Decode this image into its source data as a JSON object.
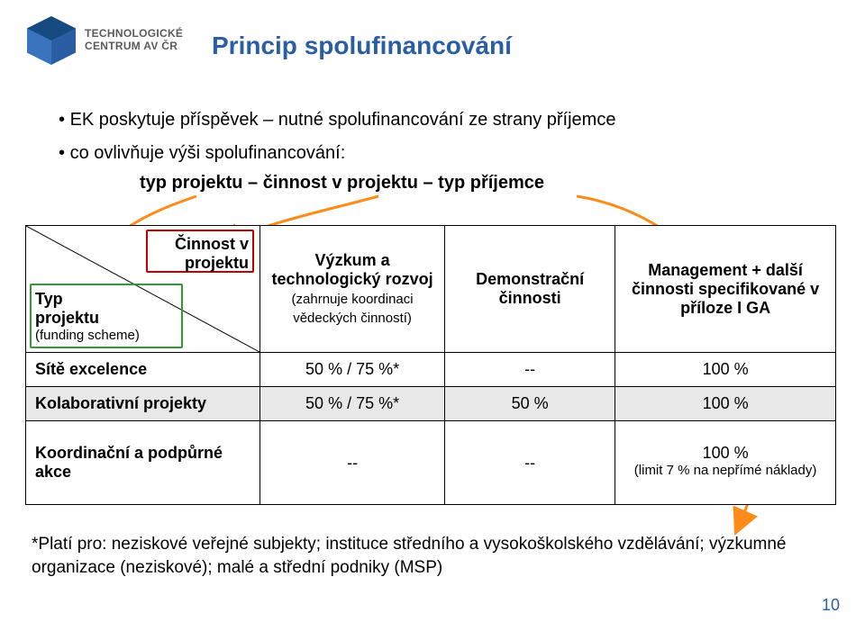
{
  "logo": {
    "line1": "TECHNOLOGICKÉ",
    "line2": "CENTRUM AV ČR",
    "mark_color": "#2a5ea3",
    "text_color": "#5a5a5a"
  },
  "title": {
    "text": "Princip spolufinancování",
    "color": "#2a5ea3",
    "fontsize": 28
  },
  "bullets": {
    "fontsize": 20,
    "indent_fontsize": 20,
    "items": [
      "EK poskytuje příspěvek – nutné spolufinancování ze strany příjemce",
      "co ovlivňuje výši spolufinancování:"
    ],
    "sub_bold": "typ projektu – činnost v projektu – typ příjemce",
    "arrow_color": "#ff8c1a"
  },
  "table": {
    "fontsize": 18,
    "small_fontsize": 15,
    "header_bg": "#ffffff",
    "shade_bg": "#e8e8e8",
    "border_color": "#000000",
    "corner": {
      "top_label": "Činnost v\nprojektu",
      "bottom_label": "Typ\nprojektu",
      "bottom_paren": "(funding scheme)"
    },
    "columns": [
      {
        "title": "Výzkum a technologický rozvoj",
        "paren": "(zahrnuje koordinaci vědeckých činností)"
      },
      {
        "title": "Demonstrační činnosti",
        "paren": ""
      },
      {
        "title": "Management + další činnosti specifikované v příloze I GA",
        "paren": ""
      }
    ],
    "rows": [
      {
        "label": "Sítě excelence",
        "cells": [
          "50 % / 75 %*",
          "--",
          "100 %"
        ],
        "shade": false
      },
      {
        "label": "Kolaborativní projekty",
        "cells": [
          "50 % / 75 %*",
          "50 %",
          "100 %"
        ],
        "shade": true
      },
      {
        "label": "Koordinační a podpůrné akce",
        "cells": [
          "--",
          "--",
          "100 %\n(limit 7 % na nepřímé náklady)"
        ],
        "shade": false
      }
    ],
    "box_top_color": "#c00000",
    "box_bot_color": "#339933"
  },
  "footnote": {
    "text": "*Platí pro: neziskové veřejné subjekty; instituce středního a vysokoškolského vzdělávání; výzkumné organizace (neziskové); malé a střední podniky (MSP)",
    "fontsize": 19
  },
  "page_number": {
    "value": "10",
    "color": "#2a5ea3",
    "fontsize": 18
  }
}
